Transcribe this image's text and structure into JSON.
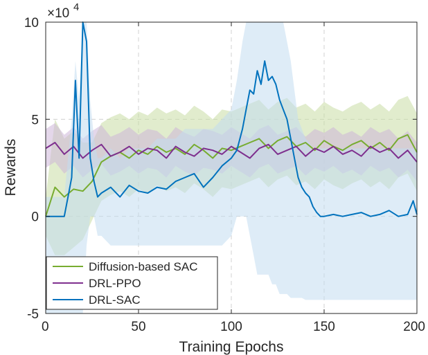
{
  "chart_data": {
    "type": "line",
    "xlabel": "Training Epochs",
    "ylabel": "Rewards",
    "y_multiplier_label": "×10",
    "y_multiplier_exponent": "4",
    "xlim": [
      0,
      200
    ],
    "ylim": [
      -5,
      10
    ],
    "x_ticks": [
      0,
      50,
      100,
      150,
      200
    ],
    "x_tick_labels": [
      "0",
      "50",
      "100",
      "150",
      "200"
    ],
    "y_ticks": [
      -5,
      0,
      5,
      10
    ],
    "y_tick_labels": [
      "-5",
      "0",
      "5",
      "10"
    ],
    "grid": true,
    "legend_position": "bottom-left",
    "series": [
      {
        "name": "Diffusion-based SAC",
        "color": "#77ac30",
        "band_color": "#c8dca4",
        "x": [
          0,
          5,
          10,
          15,
          20,
          25,
          30,
          35,
          40,
          45,
          50,
          55,
          60,
          65,
          70,
          75,
          80,
          85,
          90,
          95,
          100,
          105,
          110,
          115,
          120,
          125,
          130,
          135,
          140,
          145,
          150,
          155,
          160,
          165,
          170,
          175,
          180,
          185,
          190,
          195,
          200
        ],
        "y": [
          0,
          1.5,
          1.0,
          1.4,
          1.3,
          1.8,
          2.8,
          3.1,
          3.3,
          3.0,
          3.4,
          3.2,
          3.6,
          3.3,
          3.5,
          3.2,
          3.7,
          3.4,
          3.0,
          3.5,
          3.4,
          3.6,
          3.8,
          4.0,
          3.5,
          3.9,
          4.1,
          3.6,
          3.8,
          3.4,
          3.9,
          3.6,
          3.4,
          3.7,
          3.9,
          3.5,
          3.8,
          3.4,
          4.0,
          4.2,
          3.3
        ],
        "band_halfwidth": [
          1.0,
          3.5,
          3.0,
          3.0,
          2.5,
          2.0,
          2.0,
          2.0,
          2.0,
          2.0,
          2.0,
          2.0,
          2.0,
          2.0,
          2.0,
          2.0,
          2.0,
          2.0,
          2.0,
          2.0,
          2.0,
          2.0,
          2.0,
          2.0,
          2.0,
          2.0,
          2.0,
          2.0,
          2.0,
          2.0,
          2.0,
          2.0,
          2.0,
          2.0,
          2.0,
          2.0,
          2.0,
          2.0,
          2.0,
          2.0,
          2.0
        ]
      },
      {
        "name": "DRL-PPO",
        "color": "#7e2f8e",
        "band_color": "#cdb6d8",
        "x": [
          0,
          5,
          10,
          15,
          20,
          25,
          30,
          35,
          40,
          45,
          50,
          55,
          60,
          65,
          70,
          75,
          80,
          85,
          90,
          95,
          100,
          105,
          110,
          115,
          120,
          125,
          130,
          135,
          140,
          145,
          150,
          155,
          160,
          165,
          170,
          175,
          180,
          185,
          190,
          195,
          200
        ],
        "y": [
          3.5,
          3.8,
          3.2,
          3.6,
          3.0,
          3.4,
          3.7,
          3.1,
          3.3,
          3.6,
          3.2,
          3.5,
          3.4,
          3.0,
          3.6,
          3.3,
          3.1,
          3.5,
          3.4,
          3.2,
          3.6,
          3.3,
          3.0,
          3.5,
          3.7,
          3.2,
          3.4,
          3.6,
          3.1,
          3.5,
          3.3,
          3.6,
          3.2,
          3.4,
          3.1,
          3.6,
          3.3,
          3.5,
          3.0,
          3.4,
          2.8
        ],
        "band_halfwidth": [
          1.0,
          1.0,
          1.0,
          1.0,
          1.0,
          1.0,
          1.0,
          1.0,
          1.0,
          1.0,
          1.0,
          1.0,
          1.0,
          1.0,
          1.0,
          1.0,
          1.0,
          1.0,
          1.0,
          1.0,
          1.0,
          1.0,
          1.0,
          1.0,
          1.0,
          1.0,
          1.0,
          1.0,
          1.0,
          1.0,
          1.0,
          1.0,
          1.0,
          1.0,
          1.0,
          1.0,
          1.0,
          1.0,
          1.0,
          1.0,
          1.0
        ]
      },
      {
        "name": "DRL-SAC",
        "color": "#0072bd",
        "band_color": "#c2dcf0",
        "x": [
          0,
          5,
          10,
          12,
          14,
          16,
          18,
          20,
          22,
          24,
          26,
          28,
          30,
          35,
          40,
          45,
          50,
          55,
          60,
          65,
          70,
          75,
          80,
          85,
          90,
          95,
          100,
          103,
          106,
          108,
          110,
          112,
          114,
          116,
          118,
          120,
          122,
          124,
          126,
          128,
          130,
          132,
          134,
          136,
          138,
          140,
          142,
          144,
          146,
          148,
          150,
          155,
          160,
          165,
          170,
          175,
          180,
          185,
          190,
          195,
          198,
          200
        ],
        "y": [
          0,
          0,
          0,
          1.0,
          2.0,
          7.0,
          3.0,
          10.0,
          9.0,
          3.0,
          1.8,
          1.0,
          1.2,
          1.5,
          1.0,
          1.6,
          1.3,
          1.2,
          1.5,
          1.4,
          1.8,
          2.0,
          2.2,
          1.5,
          2.0,
          2.6,
          3.0,
          3.4,
          4.5,
          5.5,
          6.5,
          6.3,
          7.5,
          6.8,
          8.0,
          7.0,
          7.2,
          6.8,
          6.0,
          5.5,
          5.0,
          4.0,
          3.0,
          2.0,
          1.5,
          1.2,
          1.0,
          0.5,
          0.2,
          0.0,
          0.0,
          0.1,
          0.0,
          0.1,
          0.2,
          0.0,
          0.1,
          0.3,
          0.0,
          0.1,
          0.8,
          0.1
        ],
        "band_lower": [
          -5,
          -5,
          -5,
          -5,
          -5,
          -5,
          -5,
          -5,
          -1.5,
          0,
          0,
          -1,
          -1,
          -1.5,
          -1.5,
          -1.5,
          -1.5,
          -1.5,
          -1.5,
          -1.5,
          -1.5,
          -1.5,
          -1.5,
          -1.5,
          -1.5,
          -1.5,
          -1.0,
          0,
          0,
          0,
          -1,
          -2,
          -3,
          -3,
          -3,
          -3,
          -3.5,
          -3.5,
          -4,
          -4,
          -4,
          -4.2,
          -4.2,
          -4.2,
          -4.2,
          -4.3,
          -4.3,
          -4.3,
          -4.3,
          -4.3,
          -4.3,
          -4.3,
          -4.3,
          -4.3,
          -4.3,
          -4.3,
          -4.3,
          -4.3,
          -4.3,
          -4.3,
          -4.3,
          -4.3
        ],
        "band_upper": [
          1.0,
          1.0,
          1.0,
          3,
          5,
          8,
          6,
          10,
          10,
          6,
          4,
          3,
          3,
          3.5,
          3,
          3.5,
          3.5,
          3.5,
          4,
          4,
          4,
          4.5,
          4.5,
          4.5,
          4.5,
          5,
          5.5,
          7,
          9,
          10,
          10,
          10,
          10,
          10,
          10,
          10,
          10,
          10,
          10,
          10,
          9,
          8,
          6.5,
          5,
          4.5,
          4,
          3.8,
          3.5,
          3.5,
          3.5,
          3.5,
          3.5,
          3.5,
          3.5,
          3.5,
          3.5,
          3.5,
          3.5,
          3.5,
          3.5,
          3.5,
          3.5
        ]
      }
    ]
  }
}
